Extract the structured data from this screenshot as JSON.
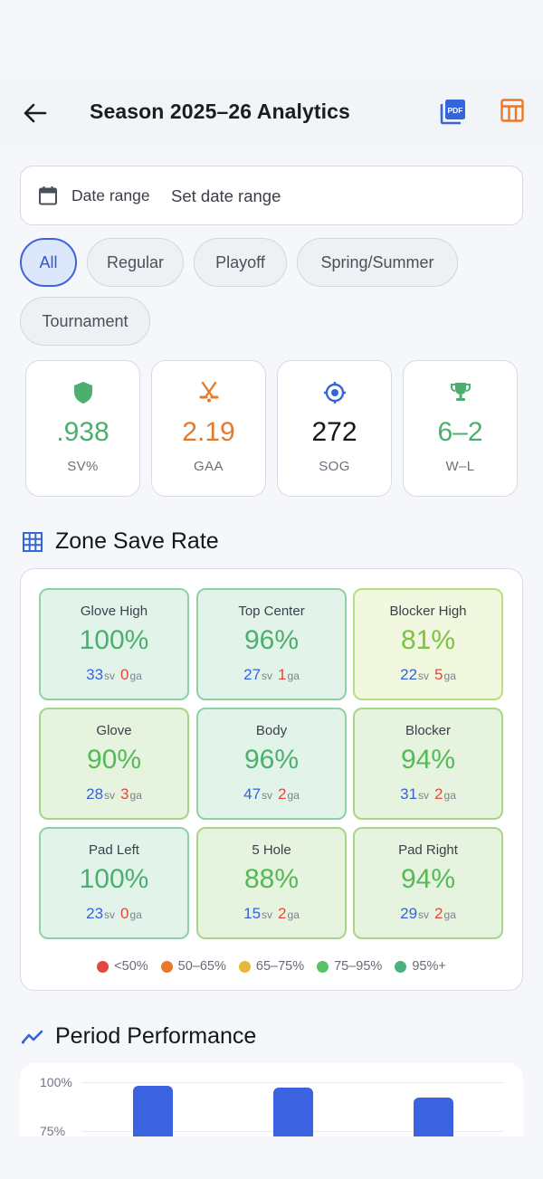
{
  "header": {
    "title": "Season 2025–26 Analytics"
  },
  "date_filter": {
    "label": "Date range",
    "value": "Set date range"
  },
  "chips": [
    {
      "label": "All",
      "active": true
    },
    {
      "label": "Regular",
      "active": false
    },
    {
      "label": "Playoff",
      "active": false
    },
    {
      "label": "Spring/Summer",
      "active": false
    },
    {
      "label": "Tournament",
      "active": false
    }
  ],
  "stats": [
    {
      "value": ".938",
      "label": "SV%",
      "color": "#4caf6e",
      "icon": "shield-icon"
    },
    {
      "value": "2.19",
      "label": "GAA",
      "color": "#e8792a",
      "icon": "crossed-sticks-icon"
    },
    {
      "value": "272",
      "label": "SOG",
      "color": "#14161c",
      "icon": "target-icon"
    },
    {
      "value": "6–2",
      "label": "W–L",
      "color": "#4caf6e",
      "icon": "trophy-icon"
    }
  ],
  "zone_section": {
    "title": "Zone Save Rate",
    "zones": [
      {
        "name": "Glove High",
        "pct": "100%",
        "sv": "33",
        "ga": "0",
        "color": "#4caf6e"
      },
      {
        "name": "Top Center",
        "pct": "96%",
        "sv": "27",
        "ga": "1",
        "color": "#4caf6e"
      },
      {
        "name": "Blocker High",
        "pct": "81%",
        "sv": "22",
        "ga": "5",
        "color": "#7cc244"
      },
      {
        "name": "Glove",
        "pct": "90%",
        "sv": "28",
        "ga": "3",
        "color": "#55b957"
      },
      {
        "name": "Body",
        "pct": "96%",
        "sv": "47",
        "ga": "2",
        "color": "#4caf6e"
      },
      {
        "name": "Blocker",
        "pct": "94%",
        "sv": "31",
        "ga": "2",
        "color": "#55b957"
      },
      {
        "name": "Pad Left",
        "pct": "100%",
        "sv": "23",
        "ga": "0",
        "color": "#4caf6e"
      },
      {
        "name": "5 Hole",
        "pct": "88%",
        "sv": "15",
        "ga": "2",
        "color": "#55b957"
      },
      {
        "name": "Pad Right",
        "pct": "94%",
        "sv": "29",
        "ga": "2",
        "color": "#55b957"
      }
    ],
    "sv_suffix": "sv",
    "ga_suffix": "ga",
    "legend": [
      {
        "label": "<50%",
        "color": "#e0493b"
      },
      {
        "label": "50–65%",
        "color": "#e8792a"
      },
      {
        "label": "65–75%",
        "color": "#e7b73a"
      },
      {
        "label": "75–95%",
        "color": "#5cc26a"
      },
      {
        "label": "95%+",
        "color": "#4caf7e"
      }
    ]
  },
  "period_section": {
    "title": "Period Performance",
    "chart_data": {
      "type": "bar",
      "y_ticks": [
        "100%",
        "75%"
      ],
      "ylim": [
        75,
        100
      ],
      "values": [
        98,
        97,
        92
      ],
      "bar_color": "#3b63e0"
    }
  }
}
